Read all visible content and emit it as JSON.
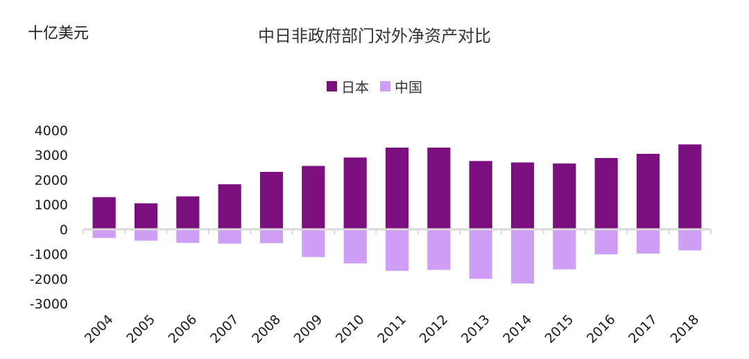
{
  "unit_label": "十亿美元",
  "chart_data": {
    "type": "bar",
    "title": "中日非政府部门对外净资产对比",
    "ylabel": "十亿美元",
    "xlabel": "",
    "categories": [
      "2004",
      "2005",
      "2006",
      "2007",
      "2008",
      "2009",
      "2010",
      "2011",
      "2012",
      "2013",
      "2014",
      "2015",
      "2016",
      "2017",
      "2018"
    ],
    "series": [
      {
        "name": "日本",
        "color": "#7b0f7e",
        "values": [
          1300,
          1050,
          1330,
          1820,
          2320,
          2560,
          2900,
          3300,
          3300,
          2760,
          2700,
          2660,
          2880,
          3050,
          3430
        ]
      },
      {
        "name": "中国",
        "color": "#cf9ff5",
        "values": [
          -350,
          -460,
          -550,
          -580,
          -560,
          -1120,
          -1380,
          -1680,
          -1640,
          -2000,
          -2190,
          -1620,
          -1010,
          -980,
          -850
        ]
      }
    ],
    "ylim": [
      -3000,
      4000
    ],
    "yticks": [
      4000,
      3000,
      2000,
      1000,
      0,
      -1000,
      -2000,
      -3000
    ],
    "grid": false,
    "legend_position": "top-center",
    "bar_overlap": true
  }
}
